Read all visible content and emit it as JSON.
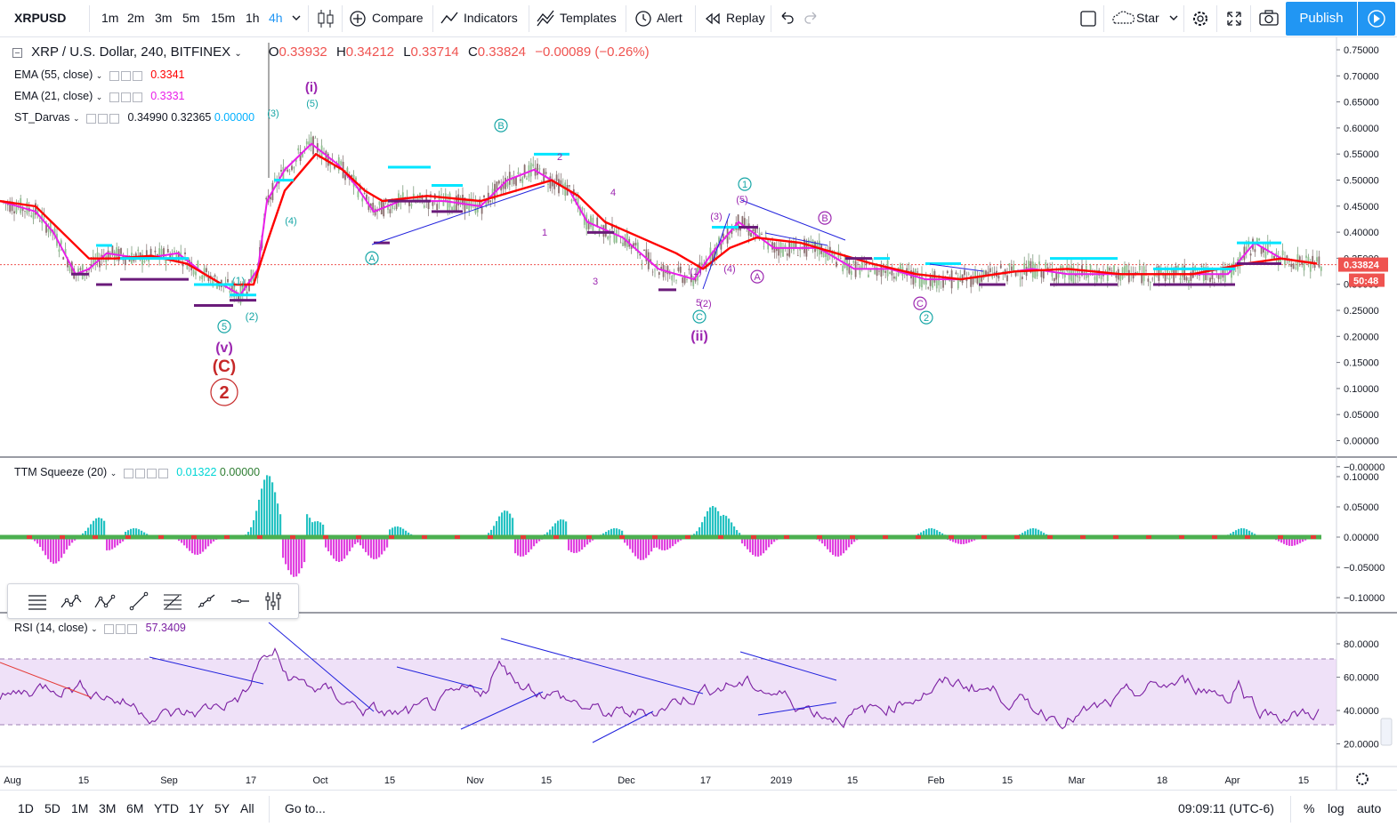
{
  "topbar": {
    "symbol": "XRPUSD",
    "intervals": [
      "1m",
      "2m",
      "3m",
      "5m",
      "15m",
      "1h",
      "4h"
    ],
    "active_interval": "4h",
    "compare_label": "Compare",
    "indicators_label": "Indicators",
    "templates_label": "Templates",
    "alert_label": "Alert",
    "replay_label": "Replay",
    "star_label": "Star",
    "publish_label": "Publish"
  },
  "legend": {
    "title": "XRP / U.S. Dollar, 240, BITFINEX",
    "o_label": "O",
    "o_value": "0.33932",
    "h_label": "H",
    "h_value": "0.34212",
    "l_label": "L",
    "l_value": "0.33714",
    "c_label": "C",
    "c_value": "0.33824",
    "change": "−0.00089 (−0.26%)",
    "ema55_label": "EMA (55, close)",
    "ema55_value": "0.3341",
    "ema21_label": "EMA (21, close)",
    "ema21_value": "0.3331",
    "darvas_label": "ST_Darvas",
    "darvas_v1": "0.34990",
    "darvas_v2": "0.32365",
    "darvas_v3": "0.00000",
    "ttm_label": "TTM Squeeze (20)",
    "ttm_v1": "0.01322",
    "ttm_v2": "0.00000",
    "rsi_label": "RSI (14, close)",
    "rsi_value": "57.3409"
  },
  "price_tag": "0.33824",
  "countdown_tag": "50:48",
  "bottombar": {
    "ranges": [
      "1D",
      "5D",
      "1M",
      "3M",
      "6M",
      "YTD",
      "1Y",
      "5Y",
      "All"
    ],
    "goto_label": "Go to...",
    "clock": "09:09:11 (UTC-6)",
    "percent_label": "%",
    "log_label": "log",
    "auto_label": "auto"
  },
  "colors": {
    "ema55": "#ff0000",
    "ema21": "#e91ee9",
    "darvas_top": "#00e5ff",
    "darvas_bottom": "#6a1b7a",
    "rsi": "#7b1fa2",
    "rsi_band": "#e1c8f2",
    "trendline": "#2222dd",
    "wave_teal": "#17a6a6",
    "wave_purple": "#9c27b0",
    "wave_red": "#c62828"
  },
  "chart_data": {
    "type": "candlestick",
    "price_axis": [
      "0.75000",
      "0.70000",
      "0.65000",
      "0.60000",
      "0.55000",
      "0.50000",
      "0.45000",
      "0.40000",
      "0.35000",
      "0.30000",
      "0.25000",
      "0.20000",
      "0.15000",
      "0.10000",
      "0.05000",
      "0.00000",
      "−0.00000"
    ],
    "ttm_axis": [
      "0.10000",
      "0.05000",
      "0.00000",
      "−0.05000",
      "−0.10000"
    ],
    "rsi_axis": [
      "80.0000",
      "60.0000",
      "40.0000",
      "20.0000"
    ],
    "time_axis": [
      "Aug",
      "15",
      "Sep",
      "17",
      "Oct",
      "15",
      "Nov",
      "15",
      "Dec",
      "17",
      "2019",
      "15",
      "Feb",
      "15",
      "Mar",
      "18",
      "Apr",
      "15"
    ],
    "ema21_path": [
      [
        0,
        0.46
      ],
      [
        40,
        0.44
      ],
      [
        60,
        0.4
      ],
      [
        85,
        0.32
      ],
      [
        100,
        0.33
      ],
      [
        120,
        0.36
      ],
      [
        160,
        0.35
      ],
      [
        200,
        0.36
      ],
      [
        230,
        0.32
      ],
      [
        270,
        0.28
      ],
      [
        290,
        0.33
      ],
      [
        300,
        0.46
      ],
      [
        320,
        0.52
      ],
      [
        350,
        0.57
      ],
      [
        380,
        0.53
      ],
      [
        400,
        0.49
      ],
      [
        420,
        0.44
      ],
      [
        450,
        0.46
      ],
      [
        500,
        0.46
      ],
      [
        540,
        0.45
      ],
      [
        570,
        0.5
      ],
      [
        600,
        0.52
      ],
      [
        640,
        0.48
      ],
      [
        660,
        0.42
      ],
      [
        700,
        0.39
      ],
      [
        740,
        0.33
      ],
      [
        780,
        0.31
      ],
      [
        800,
        0.36
      ],
      [
        830,
        0.42
      ],
      [
        870,
        0.37
      ],
      [
        920,
        0.37
      ],
      [
        960,
        0.33
      ],
      [
        1000,
        0.33
      ],
      [
        1040,
        0.31
      ],
      [
        1080,
        0.31
      ],
      [
        1120,
        0.32
      ],
      [
        1160,
        0.33
      ],
      [
        1200,
        0.32
      ],
      [
        1260,
        0.32
      ],
      [
        1320,
        0.32
      ],
      [
        1380,
        0.32
      ],
      [
        1410,
        0.38
      ],
      [
        1440,
        0.35
      ],
      [
        1480,
        0.34
      ]
    ],
    "ema55_path": [
      [
        0,
        0.46
      ],
      [
        40,
        0.45
      ],
      [
        70,
        0.4
      ],
      [
        100,
        0.35
      ],
      [
        130,
        0.35
      ],
      [
        170,
        0.355
      ],
      [
        210,
        0.34
      ],
      [
        250,
        0.3
      ],
      [
        285,
        0.3
      ],
      [
        300,
        0.38
      ],
      [
        320,
        0.48
      ],
      [
        355,
        0.55
      ],
      [
        385,
        0.52
      ],
      [
        410,
        0.48
      ],
      [
        430,
        0.46
      ],
      [
        480,
        0.47
      ],
      [
        540,
        0.46
      ],
      [
        580,
        0.48
      ],
      [
        620,
        0.5
      ],
      [
        650,
        0.47
      ],
      [
        680,
        0.42
      ],
      [
        720,
        0.39
      ],
      [
        760,
        0.36
      ],
      [
        790,
        0.33
      ],
      [
        820,
        0.37
      ],
      [
        850,
        0.39
      ],
      [
        900,
        0.38
      ],
      [
        940,
        0.36
      ],
      [
        980,
        0.34
      ],
      [
        1030,
        0.32
      ],
      [
        1080,
        0.31
      ],
      [
        1140,
        0.325
      ],
      [
        1200,
        0.33
      ],
      [
        1260,
        0.32
      ],
      [
        1340,
        0.32
      ],
      [
        1400,
        0.34
      ],
      [
        1440,
        0.35
      ],
      [
        1480,
        0.34
      ]
    ],
    "darvas_boxes": [
      [
        108,
        126,
        0.375,
        0.3
      ],
      [
        135,
        212,
        0.35,
        0.31
      ],
      [
        218,
        262,
        0.3,
        0.26
      ],
      [
        258,
        288,
        0.28,
        0.27
      ],
      [
        436,
        484,
        0.525,
        0.46
      ],
      [
        485,
        520,
        0.49,
        0.44
      ],
      [
        1180,
        1256,
        0.35,
        0.3
      ],
      [
        1296,
        1388,
        0.33,
        0.3
      ],
      [
        1390,
        1440,
        0.38,
        0.34
      ]
    ],
    "elliott_labels": [
      {
        "text": "(i)",
        "color": "purple"
      },
      {
        "text": "(5)",
        "color": "teal"
      },
      {
        "text": "(3)",
        "color": "teal"
      },
      {
        "text": "(4)",
        "color": "teal"
      },
      {
        "text": "(1)",
        "color": "teal"
      },
      {
        "text": "(2)",
        "color": "teal"
      },
      {
        "text": "5",
        "color": "teal"
      },
      {
        "text": "(v)",
        "color": "purple"
      },
      {
        "text": "(C)",
        "color": "red"
      },
      {
        "text": "2",
        "color": "red"
      },
      {
        "text": "A",
        "color": "teal"
      },
      {
        "text": "B",
        "color": "teal"
      },
      {
        "text": "2",
        "color": "purple"
      },
      {
        "text": "1",
        "color": "purple"
      },
      {
        "text": "3",
        "color": "purple"
      },
      {
        "text": "4",
        "color": "purple"
      },
      {
        "text": "5",
        "color": "purple"
      },
      {
        "text": "C",
        "color": "teal"
      },
      {
        "text": "(ii)",
        "color": "purple"
      },
      {
        "text": "1",
        "color": "teal"
      },
      {
        "text": "(3)",
        "color": "purple"
      },
      {
        "text": "(5)",
        "color": "purple"
      },
      {
        "text": "(4)",
        "color": "purple"
      },
      {
        "text": "(1)",
        "color": "purple"
      },
      {
        "text": "(2)",
        "color": "purple"
      },
      {
        "text": "A",
        "color": "purple"
      },
      {
        "text": "B",
        "color": "purple"
      },
      {
        "text": "C",
        "color": "purple"
      },
      {
        "text": "2",
        "color": "teal"
      }
    ]
  }
}
